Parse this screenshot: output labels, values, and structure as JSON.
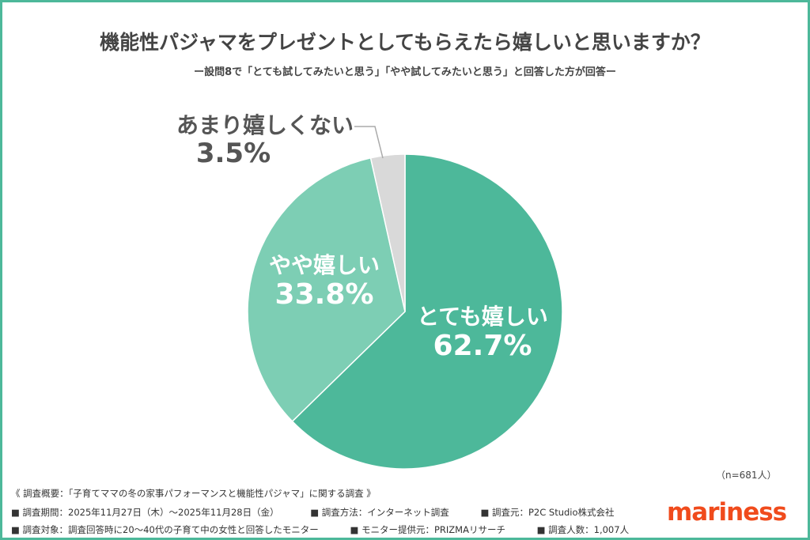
{
  "title": "機能性パジャマをプレゼントとしてもらえたら嬉しいと思いますか？",
  "subtitle": "ー設問8で「とても試してみたいと思う」「やや試してみたいと思う」と回答した方が回答ー",
  "sample_size": "（n=681人）",
  "chart_data": {
    "type": "pie",
    "title": "機能性パジャマをプレゼントとしてもらえたら嬉しいと思いますか？",
    "start": "top, clockwise",
    "slices": [
      {
        "label": "とても嬉しい",
        "value": 62.7,
        "display": "62.7%",
        "color": "#4db89a"
      },
      {
        "label": "やや嬉しい",
        "value": 33.8,
        "display": "33.8%",
        "color": "#7dceb4"
      },
      {
        "label": "あまり嬉しくない",
        "value": 3.5,
        "display": "3.5%",
        "color": "#d9d9d9"
      }
    ]
  },
  "footer": {
    "heading": "《 調査概要：「子育てママの冬の家事パフォーマンスと機能性パジャマ」に関する調査 》",
    "period": "■ 調査期間：2025年11月27日（木）～2025年11月28日（金）",
    "method": "■ 調査方法：インターネット調査",
    "source": "■ 調査元：P2C Studio株式会社",
    "target": "■ 調査対象：調査回答時に20～40代の子育て中の女性と回答したモニター",
    "provider": "■ モニター提供元：PRIZMAリサーチ",
    "count": "■ 調査人数：1,007人"
  },
  "logo": "mariness"
}
